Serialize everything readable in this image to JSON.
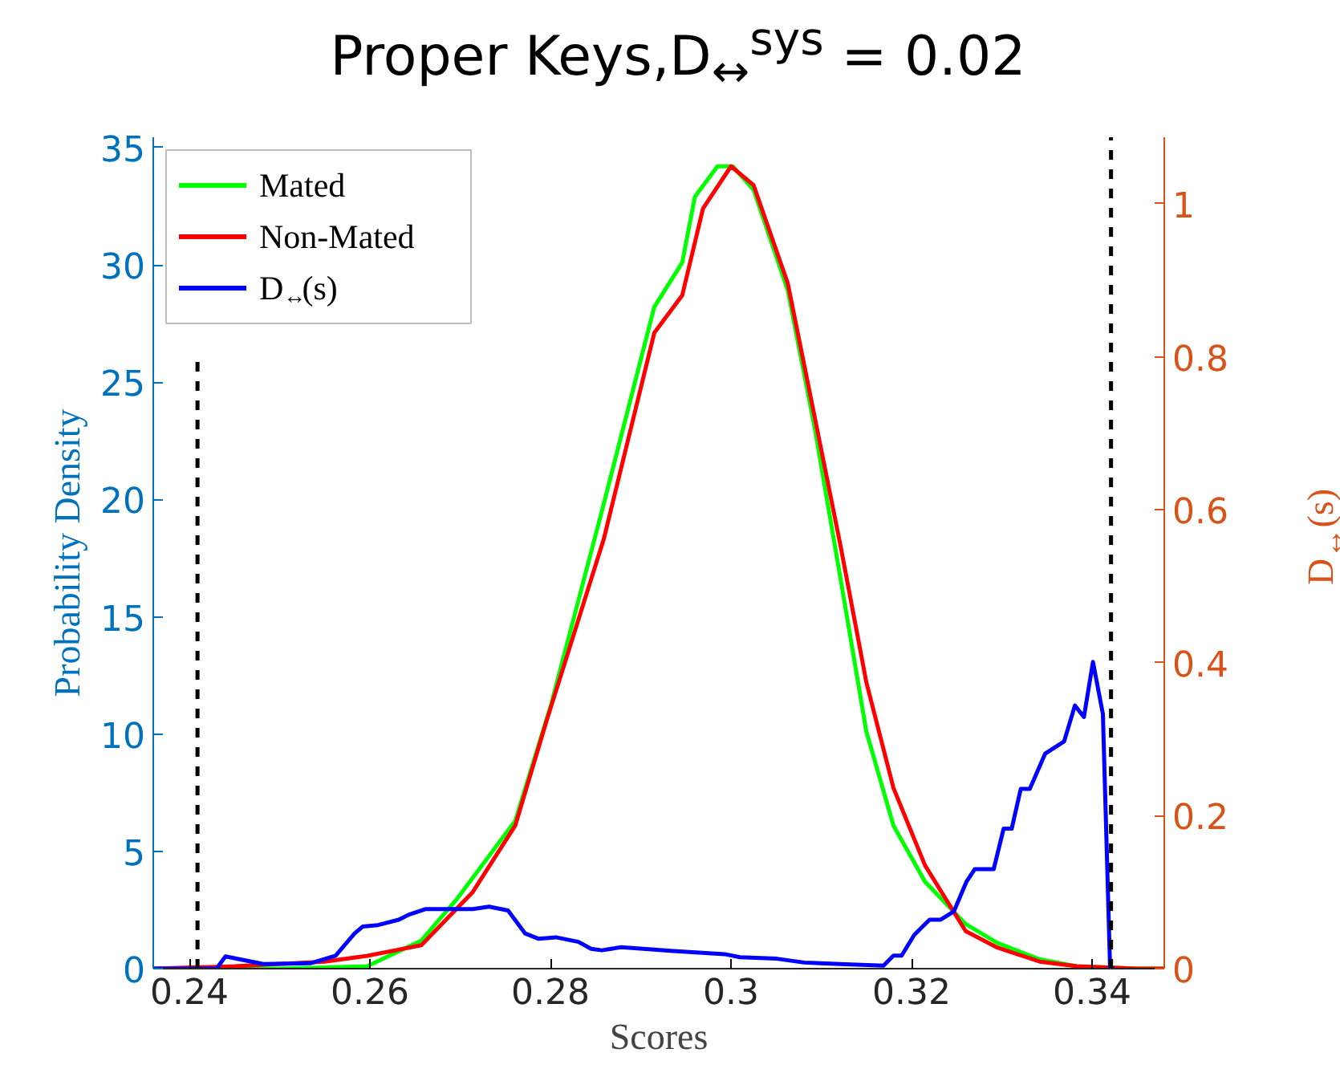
{
  "chart_data": {
    "type": "line",
    "title": "Proper Keys,D$_{↔}$$^{sys}$ = 0.02",
    "xlabel": "Scores",
    "ylabel": "Probability Density",
    "y2label": "D$_{↔}$(s)",
    "xlim": [
      0.236,
      0.348
    ],
    "xticks": [
      0.24,
      0.26,
      0.28,
      {
        "value": 0.3,
        "label": "0.3"
      },
      0.32,
      0.34
    ],
    "ylim": [
      0,
      35.44
    ],
    "yticks": [
      0,
      5,
      10,
      15,
      20,
      25,
      30,
      35
    ],
    "y2lim": [
      0,
      1.087
    ],
    "y2ticks": [
      0,
      0.2,
      0.4,
      0.6,
      0.8,
      1
    ],
    "legend": "top left",
    "line_style": "solid",
    "series": [
      {
        "name": "Mated",
        "color": "#00ff00",
        "x": [
          0.236,
          0.25,
          0.255,
          0.2597,
          0.2657,
          0.2697,
          0.2761,
          0.2801,
          0.2859,
          0.2915,
          0.2946,
          0.296,
          0.2985,
          0.3002,
          0.3025,
          0.3063,
          0.3093,
          0.3121,
          0.315,
          0.318,
          0.3215,
          0.326,
          0.3295,
          0.3342,
          0.3383,
          0.345,
          0.348
        ],
        "values": [
          0,
          0,
          0.05,
          0.1,
          1.2,
          3.0,
          6.3,
          11.3,
          19.8,
          28.2,
          30.1,
          32.9,
          34.2,
          34.2,
          33.2,
          28.9,
          23.0,
          16.7,
          10.1,
          6.1,
          3.7,
          1.9,
          1.1,
          0.4,
          0.1,
          0,
          0
        ]
      },
      {
        "name": "Non-Mated",
        "color": "#ff0000",
        "x": [
          0.236,
          0.245,
          0.255,
          0.2597,
          0.2657,
          0.2714,
          0.2761,
          0.2796,
          0.2859,
          0.2915,
          0.2946,
          0.2969,
          0.3,
          0.3025,
          0.3063,
          0.3121,
          0.315,
          0.318,
          0.3215,
          0.326,
          0.3295,
          0.3342,
          0.3383,
          0.345,
          0.348
        ],
        "values": [
          0,
          0.1,
          0.3,
          0.55,
          1.0,
          3.27,
          6.1,
          10.6,
          18.3,
          27.1,
          28.7,
          32.4,
          34.2,
          33.4,
          29.2,
          18.1,
          12.2,
          7.7,
          4.4,
          1.6,
          0.9,
          0.3,
          0.1,
          0,
          0
        ]
      },
      {
        "name": "D$_{↔}$(s)",
        "color": "#0000ff",
        "axis": "y2",
        "x": [
          0.236,
          0.243,
          0.244,
          0.2482,
          0.2534,
          0.2562,
          0.2583,
          0.2592,
          0.2609,
          0.2632,
          0.2644,
          0.2662,
          0.2714,
          0.2732,
          0.2753,
          0.2772,
          0.2787,
          0.2806,
          0.2831,
          0.2845,
          0.2857,
          0.2878,
          0.2915,
          0.2936,
          0.2993,
          0.301,
          0.3051,
          0.3081,
          0.3121,
          0.3169,
          0.318,
          0.3189,
          0.3203,
          0.322,
          0.3232,
          0.3247,
          0.3261,
          0.327,
          0.3291,
          0.3302,
          0.3311,
          0.3321,
          0.3331,
          0.3348,
          0.3369,
          0.3381,
          0.3391,
          0.3401,
          0.3412,
          0.342,
          0.3425
        ],
        "values": [
          0,
          0,
          0.016,
          0.006,
          0.007,
          0.017,
          0.046,
          0.055,
          0.057,
          0.064,
          0.071,
          0.078,
          0.078,
          0.081,
          0.076,
          0.046,
          0.039,
          0.041,
          0.035,
          0.026,
          0.024,
          0.028,
          0.025,
          0.023,
          0.019,
          0.015,
          0.013,
          0.008,
          0.006,
          0.004,
          0.017,
          0.017,
          0.044,
          0.064,
          0.064,
          0.075,
          0.114,
          0.13,
          0.13,
          0.183,
          0.183,
          0.235,
          0.235,
          0.281,
          0.297,
          0.344,
          0.329,
          0.401,
          0.333,
          0,
          0
        ]
      },
      {
        "color": "#000000",
        "line_style": "dashed",
        "x": [
          0.2409,
          0.2409
        ],
        "values": [
          0,
          26.1
        ]
      },
      {
        "color": "#000000",
        "line_style": "dashed",
        "x": [
          0.3421,
          0.3421
        ],
        "values": [
          0,
          35.44
        ]
      }
    ]
  }
}
